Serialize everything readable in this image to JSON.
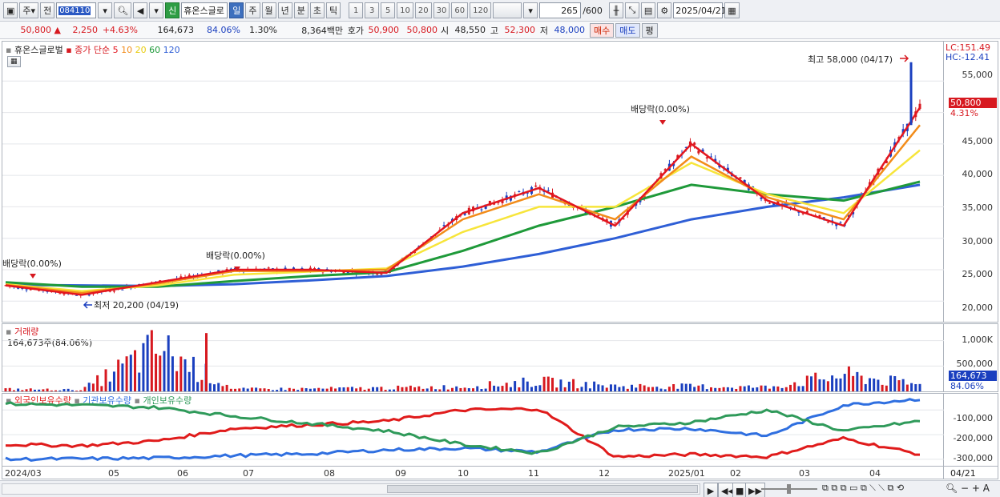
{
  "toolbar": {
    "market_type": "주",
    "prev_label": "전",
    "code": "084110",
    "name": "휴온스글로",
    "credit_badge": "신",
    "periods": [
      "일",
      "주",
      "월",
      "년",
      "분",
      "초",
      "틱"
    ],
    "active_period": "일",
    "intervals": [
      "1",
      "3",
      "5",
      "10",
      "20",
      "30",
      "60",
      "120"
    ],
    "count": "265",
    "count_max": "/600",
    "date": "2025/04/21"
  },
  "infobar": {
    "price": "50,800",
    "change": "2,250",
    "change_pct": "+4.63%",
    "volume": "164,673",
    "vol_ratio": "84.06%",
    "turnover": "1.30%",
    "amount": "8,364백만",
    "quote_label": "호가",
    "ask": "50,900",
    "bid": "50,800",
    "open_label": "시",
    "open": "48,550",
    "high_label": "고",
    "high": "52,300",
    "low_label": "저",
    "low": "48,000",
    "buy_btn": "매수",
    "sell_btn": "매도",
    "eval_btn": "평"
  },
  "price_panel": {
    "name": "휴온스글로벌",
    "ma_label": "종가 단순",
    "ma_periods": [
      "5",
      "10",
      "20",
      "60",
      "120"
    ],
    "lc_label": "LC:151.49",
    "hc_label": "HC:-12.41",
    "current_price_tag": "50,800",
    "current_pct_tag": "4.31%",
    "high_annot": "최고 58,000 (04/17)",
    "low_annot": "최저 20,200 (04/19)",
    "dividend_annot": "배당락(0.00%)"
  },
  "volume_panel": {
    "title": "거래량",
    "value_label": "164,673주(84.06%)",
    "current_tag": "164,673",
    "current_pct": "84.06%"
  },
  "holding_panel": {
    "legends": [
      "외국인보유수량",
      "기관보유수량",
      "개인보유수량"
    ]
  },
  "x_labels": [
    "2024/03",
    "05",
    "06",
    "07",
    "08",
    "09",
    "10",
    "11",
    "12",
    "2025/01",
    "02",
    "03",
    "04"
  ],
  "x_axis_end": "04/21",
  "colors": {
    "up": "#d71920",
    "down": "#1a3fbf",
    "ma5": "#e3161f",
    "ma10": "#f28c1a",
    "ma20": "#f7e53b",
    "ma60": "#1f9a3a",
    "ma120": "#2f5fd6",
    "foreign": "#e01b1b",
    "institution": "#2f6fe0",
    "individual": "#2f9a5a"
  },
  "chart_data": [
    {
      "type": "line",
      "title": "휴온스글로벌",
      "xlabel": "",
      "ylabel": "",
      "x": [
        "2024/03",
        "05",
        "06",
        "07",
        "08",
        "09",
        "10",
        "11",
        "12",
        "2025/01",
        "02",
        "03",
        "04"
      ],
      "ylim": [
        18000,
        60000
      ],
      "y_ticks": [
        "55,000",
        "50,000",
        "45,000",
        "40,000",
        "35,000",
        "30,000",
        "25,000",
        "20,000"
      ],
      "series": [
        {
          "name": "5",
          "values": [
            22500,
            21000,
            23000,
            25000,
            25000,
            24500,
            34000,
            38000,
            32000,
            45000,
            36000,
            32000,
            50800
          ]
        },
        {
          "name": "10",
          "values": [
            22600,
            21300,
            22800,
            24800,
            24800,
            25000,
            33000,
            37000,
            33000,
            43000,
            36500,
            33000,
            48000
          ]
        },
        {
          "name": "20",
          "values": [
            22700,
            21600,
            22500,
            24200,
            24700,
            25200,
            31000,
            35000,
            35000,
            42000,
            37000,
            34000,
            44000
          ]
        },
        {
          "name": "60",
          "values": [
            23000,
            22300,
            22300,
            23200,
            24000,
            24600,
            28000,
            32000,
            35000,
            38500,
            37000,
            36000,
            39000
          ]
        },
        {
          "name": "120",
          "values": [
            22600,
            22500,
            22400,
            22700,
            23300,
            24000,
            25500,
            27500,
            30000,
            33000,
            35000,
            36500,
            38500
          ]
        }
      ]
    },
    {
      "type": "bar",
      "title": "거래량",
      "ylim": [
        0,
        1200000
      ],
      "y_ticks": [
        "1,000K",
        "500,000"
      ],
      "x": [
        "2024/03",
        "05",
        "06",
        "07",
        "08",
        "09",
        "10",
        "11",
        "12",
        "2025/01",
        "02",
        "03",
        "04"
      ],
      "values": [
        60000,
        40000,
        1150000,
        60000,
        70000,
        90000,
        120000,
        260000,
        140000,
        130000,
        110000,
        430000,
        164673
      ]
    },
    {
      "type": "line",
      "title": "",
      "ylim": [
        -320000,
        -60000
      ],
      "y_ticks": [
        "-100,000",
        "-200,000",
        "-300,000"
      ],
      "x": [
        "2024/03",
        "05",
        "06",
        "07",
        "08",
        "09",
        "10",
        "11",
        "12",
        "2025/01",
        "02",
        "03",
        "04"
      ],
      "series": [
        {
          "name": "외국인보유수량",
          "values": [
            -240000,
            -245000,
            -225000,
            -175000,
            -160000,
            -145000,
            -100000,
            -95000,
            -290000,
            -280000,
            -290000,
            -215000,
            -280000
          ]
        },
        {
          "name": "기관보유수량",
          "values": [
            -300000,
            -298000,
            -295000,
            -285000,
            -278000,
            -262000,
            -255000,
            -270000,
            -180000,
            -175000,
            -205000,
            -80000,
            -55000
          ]
        },
        {
          "name": "개인보유수량",
          "values": [
            -75000,
            -80000,
            -90000,
            -125000,
            -155000,
            -185000,
            -240000,
            -275000,
            -170000,
            -150000,
            -100000,
            -185000,
            -145000
          ]
        }
      ]
    }
  ]
}
